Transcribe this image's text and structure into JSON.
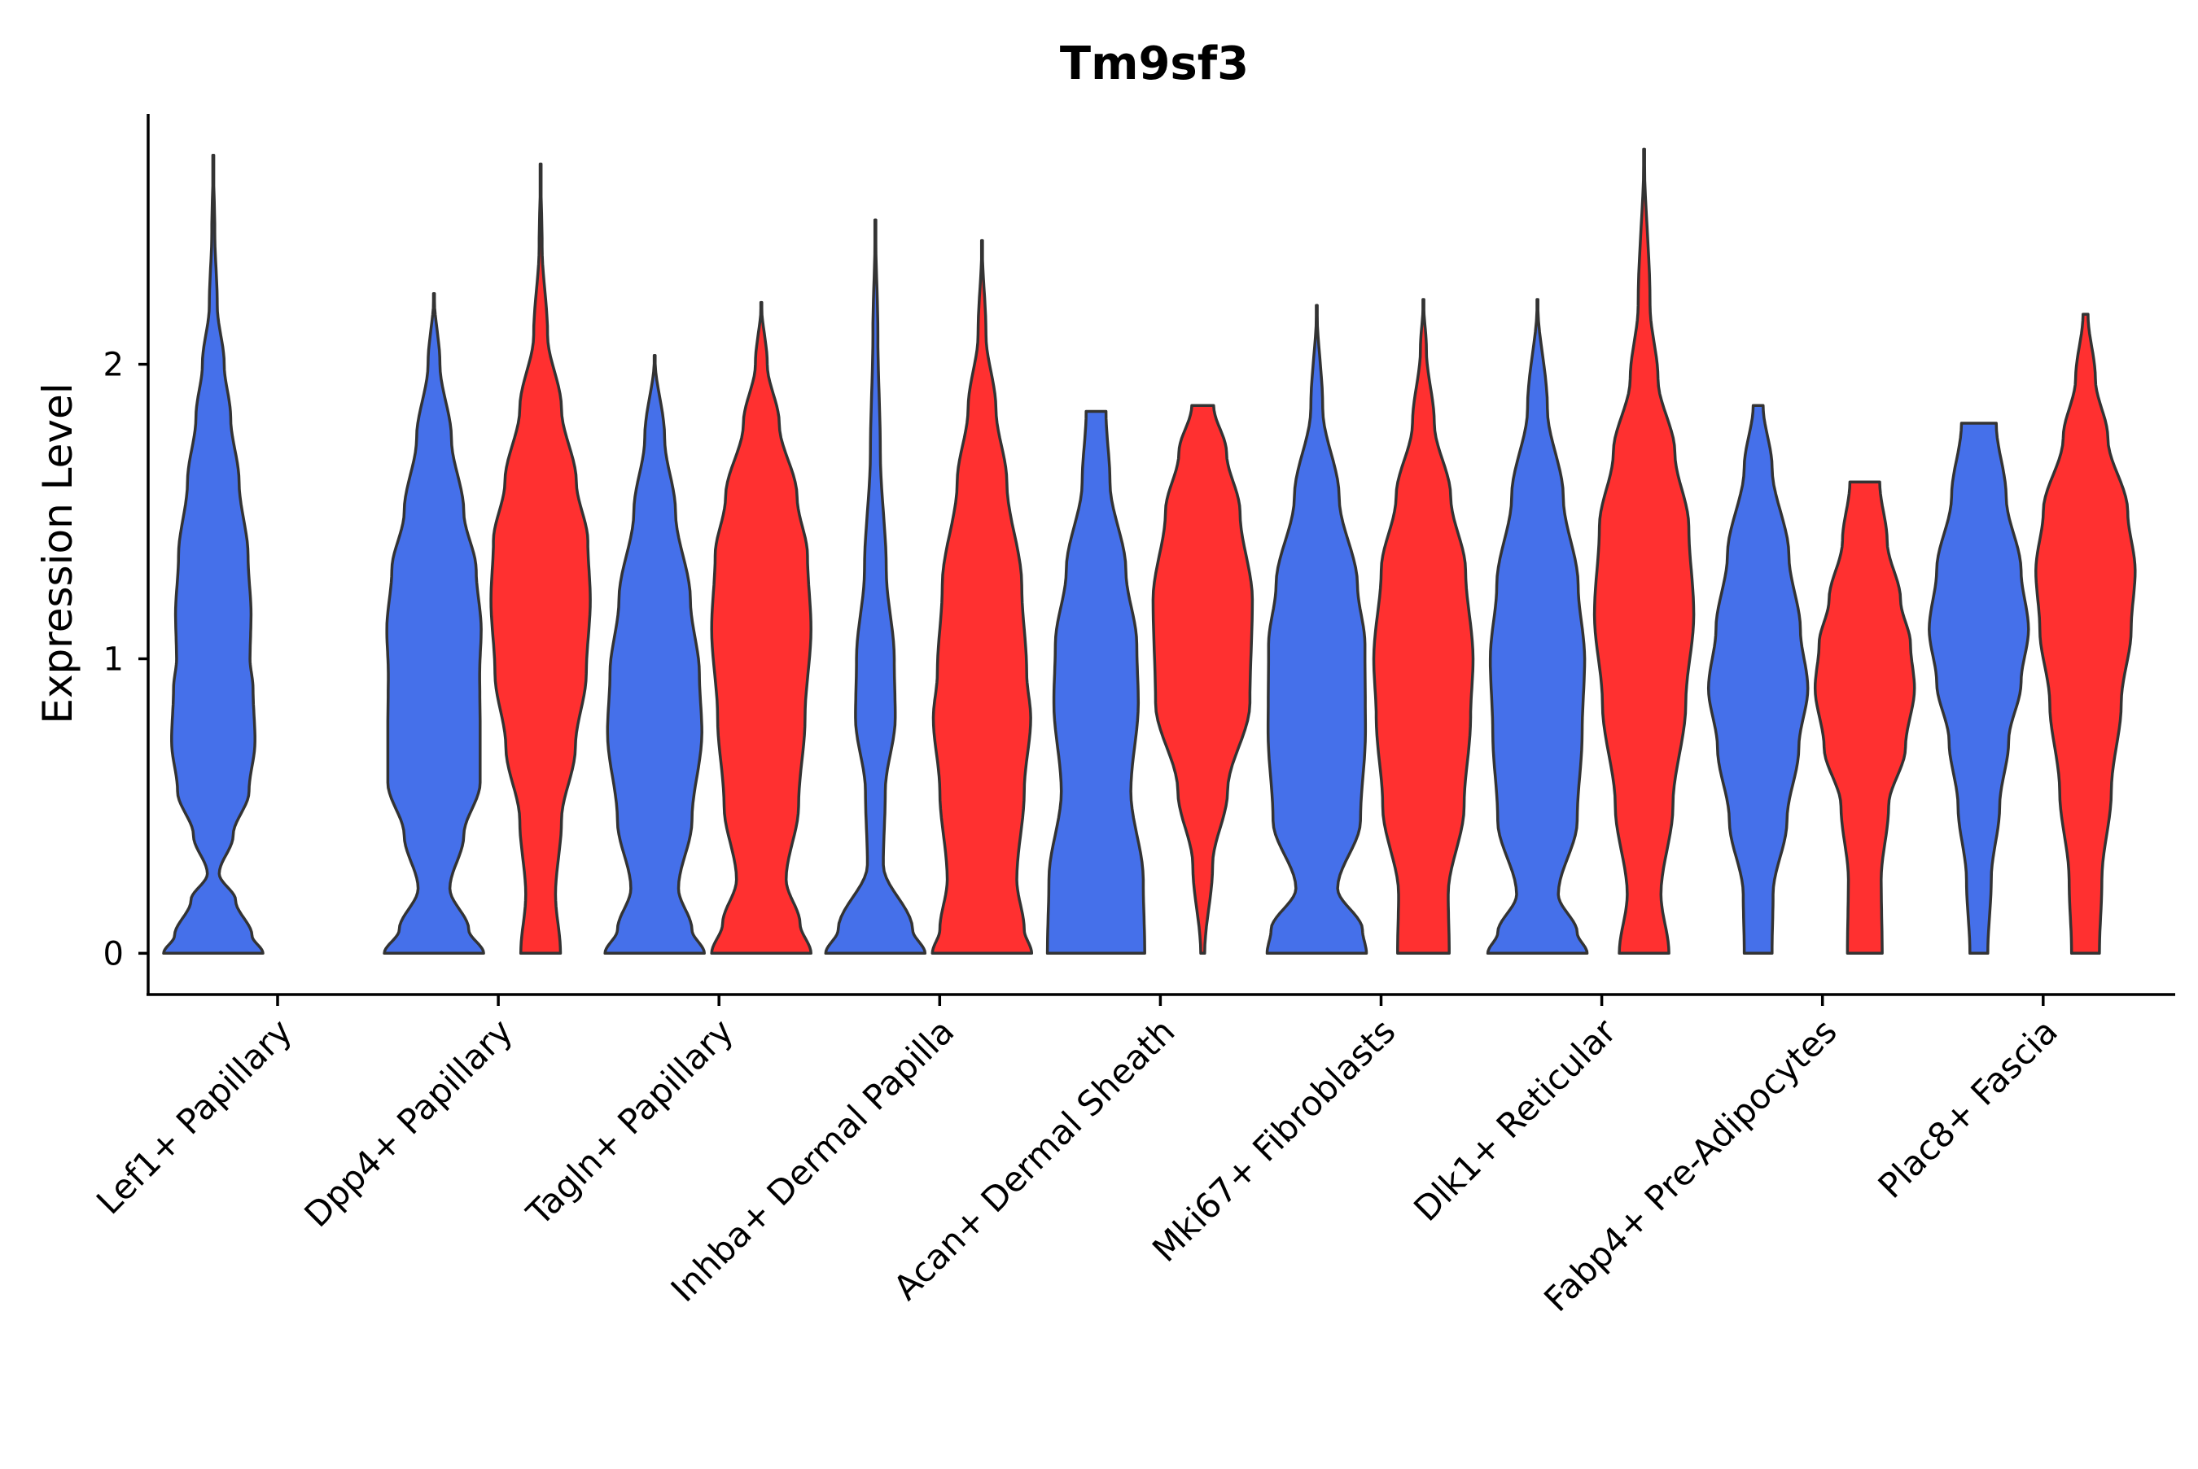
{
  "chart_data": {
    "type": "violin",
    "title": "Tm9sf3",
    "xlabel": "",
    "ylabel": "Expression Level",
    "ylim": [
      -0.14,
      2.85
    ],
    "yticks": [
      0,
      1,
      2
    ],
    "grid": false,
    "legend": "none",
    "colors": {
      "group_1": "#4570EA",
      "group_2": "#FF3030",
      "outline": "#333333"
    },
    "categories": [
      "Lef1+ Papillary",
      "Dpp4+ Papillary",
      "Tagln+ Papillary",
      "Inhba+ Dermal Papilla",
      "Acan+ Dermal Sheath",
      "Mki67+ Fibroblasts",
      "Dlk1+ Reticular",
      "Fabp4+ Pre-Adipocytes",
      "Plac8+ Fascia"
    ],
    "violins": [
      {
        "category": "Lef1+ Papillary",
        "group": "group_1",
        "color": "#4570EA",
        "max": 2.71,
        "profile": [
          [
            0,
            1.0
          ],
          [
            0.06,
            0.78
          ],
          [
            0.18,
            0.45
          ],
          [
            0.27,
            0.12
          ],
          [
            0.4,
            0.4
          ],
          [
            0.55,
            0.72
          ],
          [
            0.72,
            0.84
          ],
          [
            0.9,
            0.8
          ],
          [
            1.0,
            0.74
          ],
          [
            1.15,
            0.76
          ],
          [
            1.35,
            0.7
          ],
          [
            1.6,
            0.52
          ],
          [
            1.82,
            0.35
          ],
          [
            2.0,
            0.22
          ],
          [
            2.2,
            0.08
          ],
          [
            2.45,
            0.03
          ],
          [
            2.71,
            0.0
          ]
        ]
      },
      {
        "category": "Dpp4+ Papillary",
        "group": "group_1",
        "color": "#4570EA",
        "max": 2.24,
        "profile": [
          [
            0,
            1.0
          ],
          [
            0.08,
            0.7
          ],
          [
            0.22,
            0.32
          ],
          [
            0.4,
            0.6
          ],
          [
            0.58,
            0.93
          ],
          [
            0.75,
            0.93
          ],
          [
            0.95,
            0.92
          ],
          [
            1.1,
            0.95
          ],
          [
            1.3,
            0.85
          ],
          [
            1.5,
            0.6
          ],
          [
            1.75,
            0.35
          ],
          [
            2.0,
            0.12
          ],
          [
            2.24,
            0.0
          ]
        ]
      },
      {
        "category": "Dpp4+ Papillary",
        "group": "group_2",
        "color": "#FF3030",
        "max": 2.68,
        "profile": [
          [
            0,
            0.4
          ],
          [
            0.2,
            0.3
          ],
          [
            0.45,
            0.42
          ],
          [
            0.7,
            0.7
          ],
          [
            0.95,
            0.92
          ],
          [
            1.2,
            1.0
          ],
          [
            1.4,
            0.95
          ],
          [
            1.6,
            0.72
          ],
          [
            1.85,
            0.42
          ],
          [
            2.1,
            0.14
          ],
          [
            2.4,
            0.03
          ],
          [
            2.68,
            0.0
          ]
        ]
      },
      {
        "category": "Tagln+ Papillary",
        "group": "group_1",
        "color": "#4570EA",
        "max": 2.03,
        "profile": [
          [
            0,
            1.0
          ],
          [
            0.08,
            0.75
          ],
          [
            0.22,
            0.48
          ],
          [
            0.45,
            0.75
          ],
          [
            0.75,
            0.95
          ],
          [
            0.95,
            0.9
          ],
          [
            1.2,
            0.72
          ],
          [
            1.5,
            0.42
          ],
          [
            1.75,
            0.2
          ],
          [
            2.03,
            0.0
          ]
        ]
      },
      {
        "category": "Tagln+ Papillary",
        "group": "group_2",
        "color": "#FF3030",
        "max": 2.21,
        "profile": [
          [
            0,
            1.0
          ],
          [
            0.1,
            0.78
          ],
          [
            0.25,
            0.5
          ],
          [
            0.5,
            0.75
          ],
          [
            0.8,
            0.88
          ],
          [
            1.1,
            1.0
          ],
          [
            1.35,
            0.93
          ],
          [
            1.55,
            0.72
          ],
          [
            1.8,
            0.36
          ],
          [
            2.0,
            0.12
          ],
          [
            2.21,
            0.0
          ]
        ]
      },
      {
        "category": "Inhba+ Dermal Papilla",
        "group": "group_1",
        "color": "#4570EA",
        "max": 2.49,
        "profile": [
          [
            0,
            1.0
          ],
          [
            0.08,
            0.75
          ],
          [
            0.3,
            0.16
          ],
          [
            0.55,
            0.2
          ],
          [
            0.8,
            0.4
          ],
          [
            1.0,
            0.38
          ],
          [
            1.3,
            0.22
          ],
          [
            1.7,
            0.1
          ],
          [
            2.1,
            0.05
          ],
          [
            2.49,
            0.0
          ]
        ]
      },
      {
        "category": "Inhba+ Dermal Papilla",
        "group": "group_2",
        "color": "#FF3030",
        "max": 2.42,
        "profile": [
          [
            0,
            1.0
          ],
          [
            0.08,
            0.85
          ],
          [
            0.25,
            0.7
          ],
          [
            0.55,
            0.85
          ],
          [
            0.8,
            0.98
          ],
          [
            0.95,
            0.9
          ],
          [
            1.25,
            0.8
          ],
          [
            1.6,
            0.5
          ],
          [
            1.85,
            0.28
          ],
          [
            2.1,
            0.08
          ],
          [
            2.42,
            0.0
          ]
        ]
      },
      {
        "category": "Acan+ Dermal Sheath",
        "group": "group_1",
        "color": "#4570EA",
        "max": 1.84,
        "profile": [
          [
            0,
            0.98
          ],
          [
            0.25,
            0.95
          ],
          [
            0.55,
            0.7
          ],
          [
            0.85,
            0.85
          ],
          [
            1.05,
            0.82
          ],
          [
            1.3,
            0.6
          ],
          [
            1.6,
            0.28
          ],
          [
            1.84,
            0.2
          ]
        ]
      },
      {
        "category": "Acan+ Dermal Sheath",
        "group": "group_2",
        "color": "#FF3030",
        "max": 1.86,
        "profile": [
          [
            0,
            0.04
          ],
          [
            0.3,
            0.2
          ],
          [
            0.55,
            0.5
          ],
          [
            0.85,
            0.95
          ],
          [
            1.2,
            1.0
          ],
          [
            1.5,
            0.75
          ],
          [
            1.7,
            0.48
          ],
          [
            1.86,
            0.22
          ]
        ]
      },
      {
        "category": "Mki67+ Fibroblasts",
        "group": "group_1",
        "color": "#4570EA",
        "max": 2.2,
        "profile": [
          [
            0,
            1.0
          ],
          [
            0.08,
            0.92
          ],
          [
            0.22,
            0.42
          ],
          [
            0.45,
            0.88
          ],
          [
            0.75,
            0.98
          ],
          [
            1.05,
            0.97
          ],
          [
            1.25,
            0.82
          ],
          [
            1.55,
            0.45
          ],
          [
            1.85,
            0.12
          ],
          [
            2.2,
            0.0
          ]
        ]
      },
      {
        "category": "Mki67+ Fibroblasts",
        "group": "group_2",
        "color": "#FF3030",
        "max": 2.22,
        "profile": [
          [
            0,
            0.52
          ],
          [
            0.2,
            0.5
          ],
          [
            0.5,
            0.82
          ],
          [
            0.8,
            0.95
          ],
          [
            1.0,
            1.0
          ],
          [
            1.3,
            0.85
          ],
          [
            1.55,
            0.55
          ],
          [
            1.8,
            0.22
          ],
          [
            2.05,
            0.06
          ],
          [
            2.22,
            0.0
          ]
        ]
      },
      {
        "category": "Dlk1+ Reticular",
        "group": "group_1",
        "color": "#4570EA",
        "max": 2.22,
        "profile": [
          [
            0,
            1.0
          ],
          [
            0.07,
            0.8
          ],
          [
            0.2,
            0.42
          ],
          [
            0.45,
            0.8
          ],
          [
            0.75,
            0.9
          ],
          [
            1.0,
            0.95
          ],
          [
            1.25,
            0.82
          ],
          [
            1.55,
            0.52
          ],
          [
            1.85,
            0.2
          ],
          [
            2.22,
            0.0
          ]
        ]
      },
      {
        "category": "Dlk1+ Reticular",
        "group": "group_2",
        "color": "#FF3030",
        "max": 2.73,
        "profile": [
          [
            0,
            0.5
          ],
          [
            0.2,
            0.34
          ],
          [
            0.5,
            0.58
          ],
          [
            0.85,
            0.84
          ],
          [
            1.15,
            1.0
          ],
          [
            1.45,
            0.9
          ],
          [
            1.7,
            0.62
          ],
          [
            1.95,
            0.28
          ],
          [
            2.2,
            0.12
          ],
          [
            2.73,
            0.0
          ]
        ]
      },
      {
        "category": "Fabp4+ Pre-Adipocytes",
        "group": "group_1",
        "color": "#4570EA",
        "max": 1.86,
        "profile": [
          [
            0,
            0.28
          ],
          [
            0.2,
            0.3
          ],
          [
            0.45,
            0.58
          ],
          [
            0.7,
            0.82
          ],
          [
            0.9,
            1.0
          ],
          [
            1.1,
            0.85
          ],
          [
            1.35,
            0.62
          ],
          [
            1.65,
            0.28
          ],
          [
            1.86,
            0.1
          ]
        ]
      },
      {
        "category": "Fabp4+ Pre-Adipocytes",
        "group": "group_2",
        "color": "#FF3030",
        "max": 1.6,
        "profile": [
          [
            0,
            0.35
          ],
          [
            0.25,
            0.33
          ],
          [
            0.5,
            0.48
          ],
          [
            0.7,
            0.82
          ],
          [
            0.9,
            1.0
          ],
          [
            1.05,
            0.92
          ],
          [
            1.2,
            0.72
          ],
          [
            1.4,
            0.45
          ],
          [
            1.6,
            0.3
          ]
        ]
      },
      {
        "category": "Plac8+ Fascia",
        "group": "group_1",
        "color": "#4570EA",
        "max": 1.8,
        "profile": [
          [
            0,
            0.18
          ],
          [
            0.25,
            0.25
          ],
          [
            0.5,
            0.42
          ],
          [
            0.72,
            0.6
          ],
          [
            0.92,
            0.85
          ],
          [
            1.1,
            1.0
          ],
          [
            1.3,
            0.85
          ],
          [
            1.55,
            0.55
          ],
          [
            1.8,
            0.35
          ]
        ]
      },
      {
        "category": "Plac8+ Fascia",
        "group": "group_2",
        "color": "#FF3030",
        "max": 2.17,
        "profile": [
          [
            0,
            0.28
          ],
          [
            0.25,
            0.33
          ],
          [
            0.55,
            0.52
          ],
          [
            0.85,
            0.72
          ],
          [
            1.1,
            0.92
          ],
          [
            1.3,
            1.0
          ],
          [
            1.5,
            0.85
          ],
          [
            1.75,
            0.45
          ],
          [
            1.95,
            0.2
          ],
          [
            2.17,
            0.05
          ]
        ]
      }
    ]
  }
}
